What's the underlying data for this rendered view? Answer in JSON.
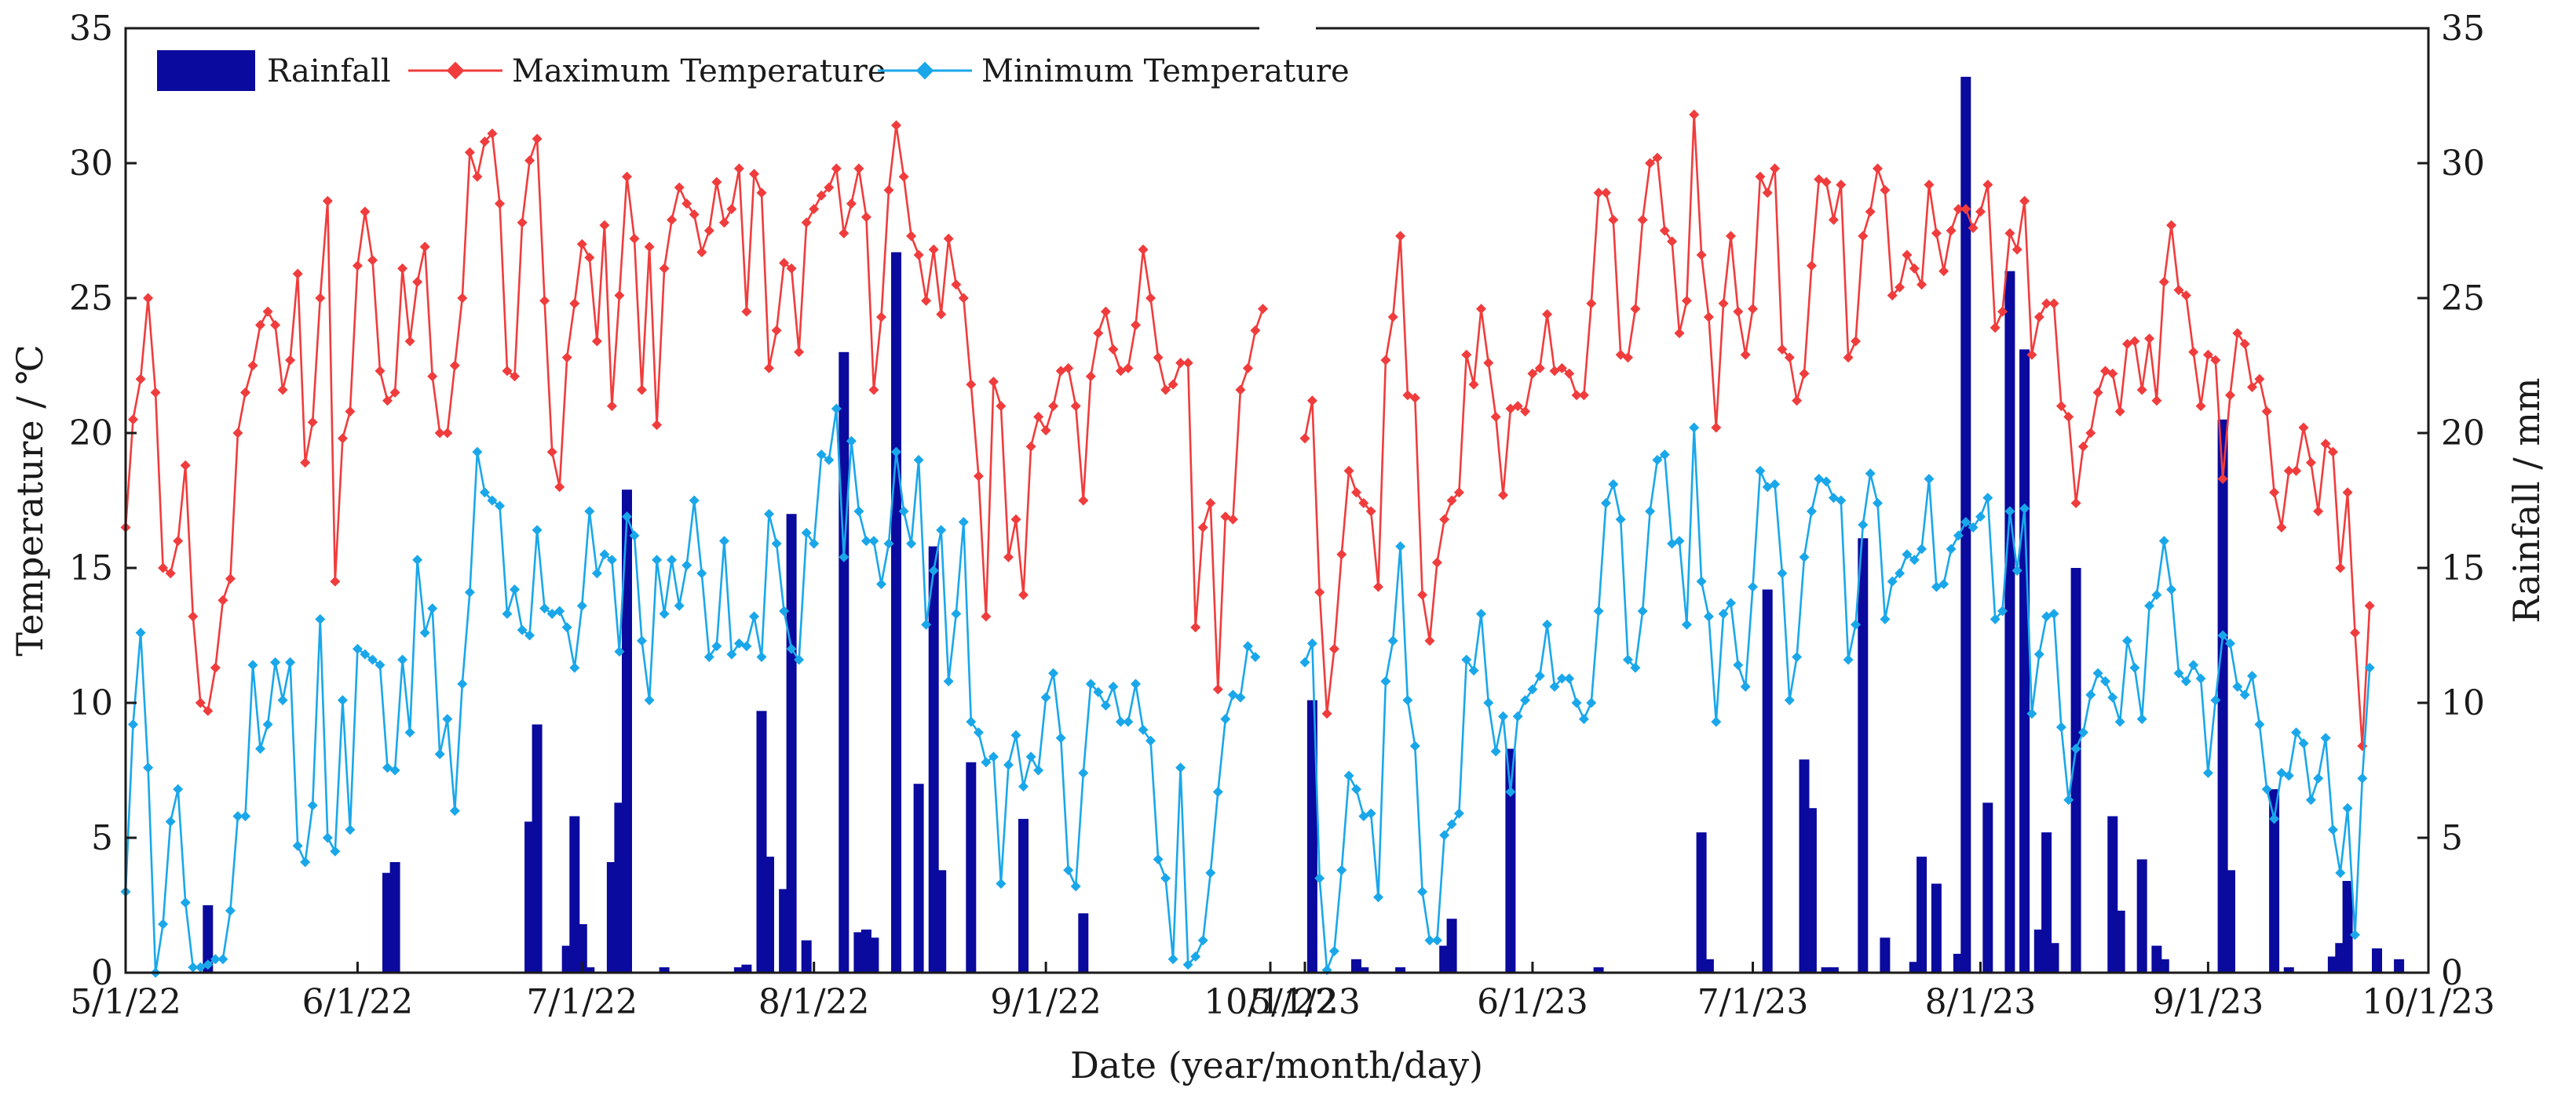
{
  "colors": {
    "rainfall": "#0a0a9e",
    "max_temp": "#f03c3c",
    "min_temp": "#1aa7ea",
    "axis": "#1a1a1a"
  },
  "chart_data": {
    "type": "bar+line",
    "xlabel": "Date (year/month/day)",
    "ylabel_left": "Temperature / ℃",
    "ylabel_right": "Rainfall / mm",
    "ylim_left": [
      0,
      35
    ],
    "ylim_right": [
      0,
      35
    ],
    "yticks": [
      "0",
      "5",
      "10",
      "15",
      "20",
      "25",
      "30",
      "35"
    ],
    "legend": {
      "placement": "top-left",
      "items": [
        {
          "name": "Rainfall",
          "marker": "bar"
        },
        {
          "name": "Maximum Temperature",
          "marker": "diamond-line"
        },
        {
          "name": "Minimum Temperature",
          "marker": "diamond-line"
        }
      ]
    },
    "panels": [
      {
        "name": "2022",
        "x_unit": "days since 5/1/22",
        "xlim": [
          0,
          153
        ],
        "xticks": [
          {
            "label": "5/1/22",
            "day": 0
          },
          {
            "label": "6/1/22",
            "day": 31
          },
          {
            "label": "7/1/22",
            "day": 61
          },
          {
            "label": "8/1/22",
            "day": 92
          },
          {
            "label": "9/1/22",
            "day": 123
          },
          {
            "label": "10/1/22",
            "day": 153
          }
        ],
        "max_temp": [
          16.5,
          20.5,
          22,
          25,
          21.5,
          15,
          14.8,
          16,
          18.8,
          13.2,
          10,
          9.7,
          11.3,
          13.8,
          14.6,
          20,
          21.5,
          22.5,
          24,
          24.5,
          24,
          21.6,
          22.7,
          25.9,
          18.9,
          20.4,
          25,
          28.6,
          14.5,
          19.8,
          20.8,
          26.2,
          28.2,
          26.4,
          22.3,
          21.2,
          21.5,
          26.1,
          23.4,
          25.6,
          26.9,
          22.1,
          20,
          20,
          22.5,
          25,
          30.4,
          29.5,
          30.8,
          31.1,
          28.5,
          22.3,
          22.1,
          27.8,
          30.1,
          30.9,
          24.9,
          19.3,
          18,
          22.8,
          24.8,
          27,
          26.5,
          23.4,
          27.7,
          21,
          25.1,
          29.5,
          27.2,
          21.6,
          26.9,
          20.3,
          26.1,
          27.9,
          29.1,
          28.5,
          28.1,
          26.7,
          27.5,
          29.3,
          27.8,
          28.3,
          29.8,
          24.5,
          29.6,
          28.9,
          22.4,
          23.8,
          26.3,
          26.1,
          23,
          27.8,
          28.3,
          28.8,
          29.1,
          29.8,
          27.4,
          28.5,
          29.8,
          28,
          21.6,
          24.3,
          29,
          31.4,
          29.5,
          27.3,
          26.6,
          24.9,
          26.8,
          24.4,
          27.2,
          25.5,
          25,
          21.8,
          18.4,
          13.2,
          21.9,
          21,
          15.4,
          16.8,
          14,
          19.5,
          20.6,
          20.1,
          21,
          22.3,
          22.4,
          21,
          17.5,
          22.1,
          23.7,
          24.5,
          23.1,
          22.3,
          22.4,
          24,
          26.8,
          25,
          22.8,
          21.6,
          21.8,
          22.6,
          22.6,
          12.8,
          16.5,
          17.4,
          10.5,
          16.9,
          16.8,
          21.6,
          22.4,
          23.8,
          24.6
        ],
        "min_temp": [
          3,
          9.2,
          12.6,
          7.6,
          0,
          1.8,
          5.6,
          6.8,
          2.6,
          0.2,
          0.2,
          0.3,
          0.5,
          0.5,
          2.3,
          5.8,
          5.8,
          11.4,
          8.3,
          9.2,
          11.5,
          10.1,
          11.5,
          4.7,
          4.1,
          6.2,
          13.1,
          5,
          4.5,
          10.1,
          5.3,
          12,
          11.8,
          11.6,
          11.4,
          7.6,
          7.5,
          11.6,
          8.9,
          15.3,
          12.6,
          13.5,
          8.1,
          9.4,
          6,
          10.7,
          14.1,
          19.3,
          17.8,
          17.5,
          17.3,
          13.3,
          14.2,
          12.7,
          12.5,
          16.4,
          13.5,
          13.3,
          13.4,
          12.8,
          11.3,
          13.6,
          17.1,
          14.8,
          15.5,
          15.3,
          11.9,
          16.9,
          16.2,
          12.3,
          10.1,
          15.3,
          13.3,
          15.3,
          13.6,
          15.1,
          17.5,
          14.8,
          11.7,
          12.1,
          16,
          11.8,
          12.2,
          12.1,
          13.2,
          11.7,
          17,
          15.9,
          13.4,
          12,
          11.6,
          16.3,
          15.9,
          19.2,
          19,
          20.9,
          15.4,
          19.7,
          17.1,
          16,
          16,
          14.4,
          15.9,
          19.3,
          17.1,
          15.9,
          19,
          12.9,
          14.9,
          16.4,
          10.8,
          13.3,
          16.7,
          9.3,
          8.9,
          7.8,
          8,
          3.3,
          7.7,
          8.8,
          6.9,
          8,
          7.5,
          10.2,
          11.1,
          8.7,
          3.8,
          3.2,
          7.4,
          10.7,
          10.4,
          9.9,
          10.6,
          9.3,
          9.3,
          10.7,
          9,
          8.6,
          4.2,
          3.5,
          0.5,
          7.6,
          0.3,
          0.6,
          1.2,
          3.7,
          6.7,
          9.4,
          10.3,
          10.2,
          12.1,
          11.7
        ],
        "rainfall": [
          [
            11,
            2.5
          ],
          [
            35,
            3.7
          ],
          [
            36,
            4.1
          ],
          [
            54,
            5.6
          ],
          [
            55,
            9.2
          ],
          [
            59,
            1
          ],
          [
            60,
            5.8
          ],
          [
            61,
            1.8
          ],
          [
            62,
            0.2
          ],
          [
            65,
            4.1
          ],
          [
            66,
            6.3
          ],
          [
            67,
            17.9
          ],
          [
            72,
            0.2
          ],
          [
            82,
            0.2
          ],
          [
            83,
            0.3
          ],
          [
            85,
            9.7
          ],
          [
            86,
            4.3
          ],
          [
            88,
            3.1
          ],
          [
            89,
            17
          ],
          [
            91,
            1.2
          ],
          [
            96,
            23
          ],
          [
            98,
            1.5
          ],
          [
            99,
            1.6
          ],
          [
            100,
            1.3
          ],
          [
            103,
            26.7
          ],
          [
            106,
            7
          ],
          [
            108,
            15.8
          ],
          [
            109,
            3.8
          ],
          [
            113,
            7.8
          ],
          [
            120,
            5.7
          ],
          [
            128,
            2.2
          ]
        ]
      },
      {
        "name": "2023",
        "x_unit": "days since 5/1/23",
        "xlim": [
          0,
          153
        ],
        "xticks": [
          {
            "label": "5/1/23",
            "day": 0
          },
          {
            "label": "6/1/23",
            "day": 31
          },
          {
            "label": "7/1/23",
            "day": 61
          },
          {
            "label": "8/1/23",
            "day": 92
          },
          {
            "label": "9/1/23",
            "day": 123
          },
          {
            "label": "10/1/23",
            "day": 153
          }
        ],
        "max_temp": [
          19.8,
          21.2,
          14.1,
          9.6,
          12,
          15.5,
          18.6,
          17.8,
          17.4,
          17.1,
          14.3,
          22.7,
          24.3,
          27.3,
          21.4,
          21.3,
          14,
          12.3,
          15.2,
          16.8,
          17.5,
          17.8,
          22.9,
          21.8,
          24.6,
          22.6,
          20.6,
          17.7,
          20.9,
          21,
          20.8,
          22.2,
          22.4,
          24.4,
          22.3,
          22.4,
          22.2,
          21.4,
          21.4,
          24.8,
          28.9,
          28.9,
          27.9,
          22.9,
          22.8,
          24.6,
          27.9,
          30,
          30.2,
          27.5,
          27.1,
          23.7,
          24.9,
          31.8,
          26.6,
          24.3,
          20.2,
          24.8,
          27.3,
          24.5,
          22.9,
          24.6,
          29.5,
          28.9,
          29.8,
          23.1,
          22.8,
          21.2,
          22.2,
          26.2,
          29.4,
          29.3,
          27.9,
          29.2,
          22.8,
          23.4,
          27.3,
          28.2,
          29.8,
          29,
          25.1,
          25.4,
          26.6,
          26.1,
          25.5,
          29.2,
          27.4,
          26,
          27.5,
          28.3,
          28.3,
          27.6,
          28.2,
          29.2,
          23.9,
          24.5,
          27.4,
          26.8,
          28.6,
          22.9,
          24.3,
          24.8,
          24.8,
          21,
          20.6,
          17.4,
          19.5,
          20,
          21.5,
          22.3,
          22.2,
          20.8,
          23.3,
          23.4,
          21.6,
          23.5,
          21.2,
          25.6,
          27.7,
          25.3,
          25.1,
          23,
          21,
          22.9,
          22.7,
          18.3,
          21.4,
          23.7,
          23.3,
          21.7,
          22,
          20.8,
          17.8,
          16.5,
          18.6,
          18.6,
          20.2,
          18.9,
          17.1,
          19.6,
          19.3,
          15,
          17.8,
          12.6,
          8.4,
          13.6
        ],
        "min_temp": [
          11.5,
          12.2,
          3.5,
          0.1,
          0.8,
          3.8,
          7.3,
          6.8,
          5.8,
          5.9,
          2.8,
          10.8,
          12.3,
          15.8,
          10.1,
          8.4,
          3,
          1.2,
          1.2,
          5.1,
          5.5,
          5.9,
          11.6,
          11.2,
          13.3,
          10,
          8.2,
          9.5,
          6.7,
          9.5,
          10.1,
          10.5,
          11,
          12.9,
          10.6,
          10.9,
          10.9,
          10,
          9.4,
          10,
          13.4,
          17.4,
          18.1,
          16.8,
          11.6,
          11.3,
          13.4,
          17.1,
          19,
          19.2,
          15.9,
          16,
          12.9,
          20.2,
          14.5,
          13.2,
          9.3,
          13.3,
          13.7,
          11.4,
          10.6,
          14.3,
          18.6,
          18,
          18.1,
          14.8,
          10.1,
          11.7,
          15.4,
          17.1,
          18.3,
          18.2,
          17.6,
          17.5,
          11.6,
          12.9,
          16.6,
          18.5,
          17.4,
          13.1,
          14.5,
          14.8,
          15.5,
          15.3,
          15.7,
          18.3,
          14.3,
          14.4,
          15.7,
          16.2,
          16.7,
          16.5,
          16.9,
          17.6,
          13.1,
          13.4,
          17.1,
          14.9,
          17.2,
          9.6,
          11.8,
          13.2,
          13.3,
          9.1,
          6.4,
          8.3,
          8.9,
          10.3,
          11.1,
          10.8,
          10.2,
          9.3,
          12.3,
          11.3,
          9.4,
          13.6,
          14,
          16,
          14.2,
          11.1,
          10.8,
          11.4,
          10.9,
          7.4,
          10.1,
          12.5,
          12.2,
          10.6,
          10.3,
          11,
          9.2,
          6.8,
          5.7,
          7.4,
          7.3,
          8.9,
          8.5,
          6.4,
          7.2,
          8.7,
          5.3,
          3.7,
          6.1,
          1.4,
          7.2,
          11.3
        ],
        "rainfall": [
          [
            1,
            10.1
          ],
          [
            7,
            0.5
          ],
          [
            8,
            0.2
          ],
          [
            13,
            0.2
          ],
          [
            19,
            1
          ],
          [
            20,
            2
          ],
          [
            28,
            8.3
          ],
          [
            40,
            0.2
          ],
          [
            54,
            5.2
          ],
          [
            55,
            0.5
          ],
          [
            63,
            14.2
          ],
          [
            68,
            7.9
          ],
          [
            69,
            6.1
          ],
          [
            71,
            0.2
          ],
          [
            72,
            0.2
          ],
          [
            76,
            16.1
          ],
          [
            79,
            1.3
          ],
          [
            83,
            0.4
          ],
          [
            84,
            4.3
          ],
          [
            86,
            3.3
          ],
          [
            89,
            0.7
          ],
          [
            90,
            33.2
          ],
          [
            93,
            6.3
          ],
          [
            96,
            26
          ],
          [
            98,
            23.1
          ],
          [
            100,
            1.6
          ],
          [
            101,
            5.2
          ],
          [
            102,
            1.1
          ],
          [
            105,
            15
          ],
          [
            110,
            5.8
          ],
          [
            111,
            2.3
          ],
          [
            114,
            4.2
          ],
          [
            116,
            1
          ],
          [
            117,
            0.5
          ],
          [
            125,
            20.5
          ],
          [
            126,
            3.8
          ],
          [
            132,
            6.8
          ],
          [
            134,
            0.2
          ],
          [
            140,
            0.6
          ],
          [
            141,
            1.1
          ],
          [
            142,
            3.4
          ],
          [
            146,
            0.9
          ],
          [
            149,
            0.5
          ]
        ]
      }
    ]
  }
}
